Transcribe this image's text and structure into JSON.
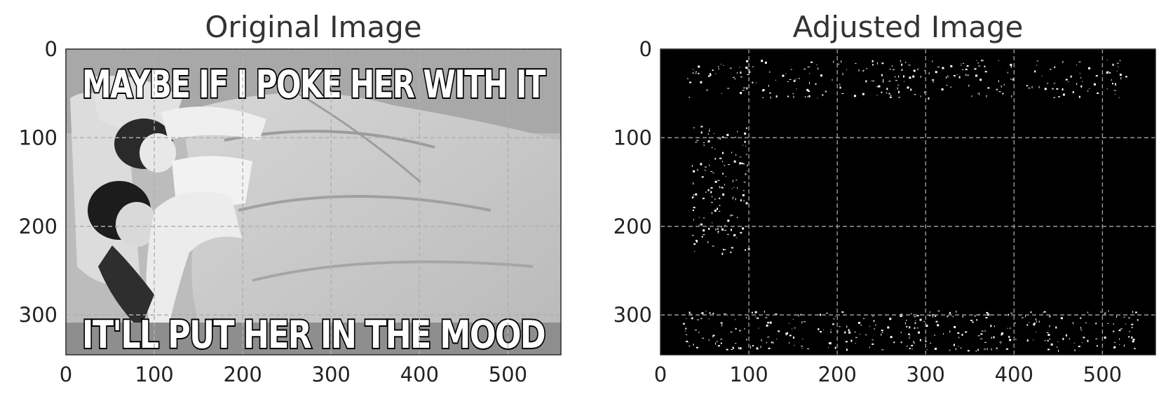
{
  "chart_data": [
    {
      "type": "image",
      "title": "Original Image",
      "xlim": [
        0,
        560
      ],
      "ylim": [
        0,
        345
      ],
      "y_inverted": true,
      "x_ticks": [
        0,
        100,
        200,
        300,
        400,
        500
      ],
      "y_ticks": [
        0,
        100,
        200,
        300
      ],
      "grid": true,
      "image_captions": {
        "top": "MAYBE IF I POKE HER WITH IT",
        "bottom": "IT'LL PUT HER IN THE MOOD"
      },
      "image_tone": "grayscale photo"
    },
    {
      "type": "image",
      "title": "Adjusted Image",
      "xlim": [
        0,
        560
      ],
      "ylim": [
        0,
        345
      ],
      "y_inverted": true,
      "x_ticks": [
        0,
        100,
        200,
        300,
        400,
        500
      ],
      "y_ticks": [
        0,
        100,
        200,
        300
      ],
      "grid": true,
      "image_tone": "black background with sparse white edge pixels"
    }
  ],
  "colors": {
    "background": "#ffffff",
    "text": "#222222",
    "title": "#333333",
    "grid": "#b0b0b0",
    "adjusted_bg": "#000000",
    "edge_pixels": "#ffffff"
  }
}
